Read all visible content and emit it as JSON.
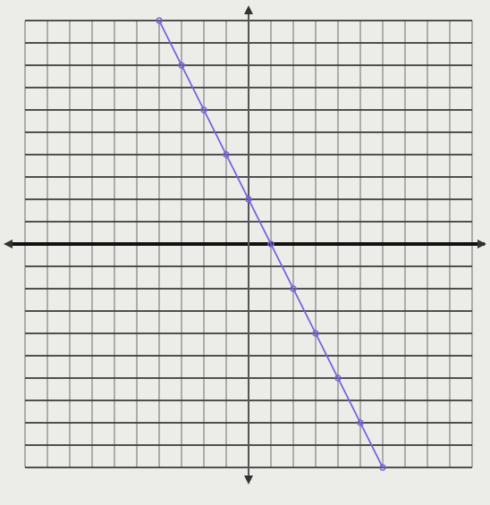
{
  "chart_data": {
    "type": "line",
    "x": [
      -4,
      -3,
      -2,
      -1,
      0,
      1,
      2,
      3,
      4,
      5,
      6
    ],
    "series": [
      {
        "color": "#7466d8",
        "values": [
          10,
          8,
          6,
          4,
          2,
          0,
          -2,
          -4,
          -6,
          -8,
          -10
        ]
      }
    ],
    "xlim": [
      -10,
      10
    ],
    "ylim": [
      -10,
      10
    ],
    "xticks": [
      -10,
      -9,
      -8,
      -7,
      -6,
      -5,
      -4,
      -3,
      -2,
      -1,
      0,
      1,
      2,
      3,
      4,
      5,
      6,
      7,
      8,
      9,
      10
    ],
    "yticks": [
      -10,
      -9,
      -8,
      -7,
      -6,
      -5,
      -4,
      -3,
      -2,
      -1,
      0,
      1,
      2,
      3,
      4,
      5,
      6,
      7,
      8,
      9,
      10
    ],
    "grid": true
  }
}
